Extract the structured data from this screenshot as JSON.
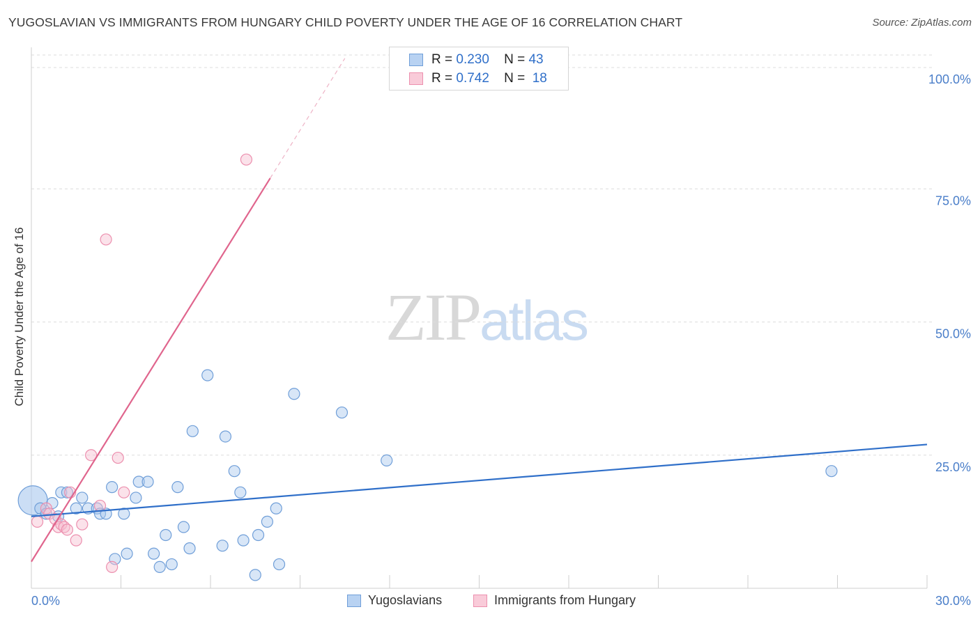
{
  "title": "YUGOSLAVIAN VS IMMIGRANTS FROM HUNGARY CHILD POVERTY UNDER THE AGE OF 16 CORRELATION CHART",
  "source": "Source: ZipAtlas.com",
  "watermark": {
    "zip": "ZIP",
    "atlas": "atlas"
  },
  "legend_top": [
    {
      "r_label": "R =",
      "r_value": "0.230",
      "n_label": "N =",
      "n_value": "43"
    },
    {
      "r_label": "R =",
      "r_value": "0.742",
      "n_label": "N =",
      "n_value": "18"
    }
  ],
  "chart_data": {
    "type": "scatter",
    "title": "YUGOSLAVIAN VS IMMIGRANTS FROM HUNGARY CHILD POVERTY UNDER THE AGE OF 16 CORRELATION CHART",
    "xlabel": "",
    "ylabel": "Child Poverty Under the Age of 16",
    "xlim": [
      0,
      30
    ],
    "ylim": [
      0,
      100
    ],
    "x_tick_labels": [
      "0.0%",
      "30.0%"
    ],
    "y_tick_labels": [
      "25.0%",
      "50.0%",
      "75.0%",
      "100.0%"
    ],
    "y_ticks": [
      25,
      50,
      75,
      100
    ],
    "grid": true,
    "legend_placement": "bottom",
    "series": [
      {
        "name": "Yugoslavians",
        "color": "#a9c8ee",
        "stroke": "#6f9ed8",
        "trend_color": "#2f6fc9",
        "trend": {
          "x0": 0,
          "y0": 13.5,
          "x1": 30,
          "y1": 27.0
        },
        "points": [
          {
            "x": 0.05,
            "y": 16.5,
            "big": true
          },
          {
            "x": 0.3,
            "y": 15.0
          },
          {
            "x": 0.5,
            "y": 14.0
          },
          {
            "x": 0.7,
            "y": 16.0
          },
          {
            "x": 0.9,
            "y": 13.5
          },
          {
            "x": 1.0,
            "y": 18.0
          },
          {
            "x": 1.2,
            "y": 18.0
          },
          {
            "x": 1.5,
            "y": 15.0
          },
          {
            "x": 1.7,
            "y": 17.0
          },
          {
            "x": 1.9,
            "y": 15.0
          },
          {
            "x": 2.2,
            "y": 15.0
          },
          {
            "x": 2.3,
            "y": 14.0
          },
          {
            "x": 2.5,
            "y": 14.0
          },
          {
            "x": 2.7,
            "y": 19.0
          },
          {
            "x": 2.8,
            "y": 5.5
          },
          {
            "x": 3.1,
            "y": 14.0
          },
          {
            "x": 3.2,
            "y": 6.5
          },
          {
            "x": 3.5,
            "y": 17.0
          },
          {
            "x": 3.6,
            "y": 20.0
          },
          {
            "x": 3.9,
            "y": 20.0
          },
          {
            "x": 4.1,
            "y": 6.5
          },
          {
            "x": 4.3,
            "y": 4.0
          },
          {
            "x": 4.5,
            "y": 10.0
          },
          {
            "x": 4.7,
            "y": 4.5
          },
          {
            "x": 4.9,
            "y": 19.0
          },
          {
            "x": 5.1,
            "y": 11.5
          },
          {
            "x": 5.3,
            "y": 7.5
          },
          {
            "x": 5.4,
            "y": 29.5
          },
          {
            "x": 5.9,
            "y": 40.0
          },
          {
            "x": 6.4,
            "y": 8.0
          },
          {
            "x": 6.5,
            "y": 28.5
          },
          {
            "x": 6.8,
            "y": 22.0
          },
          {
            "x": 7.0,
            "y": 18.0
          },
          {
            "x": 7.1,
            "y": 9.0
          },
          {
            "x": 7.5,
            "y": 2.5
          },
          {
            "x": 7.6,
            "y": 10.0
          },
          {
            "x": 7.9,
            "y": 12.5
          },
          {
            "x": 8.2,
            "y": 15.0
          },
          {
            "x": 8.3,
            "y": 4.5
          },
          {
            "x": 8.8,
            "y": 36.5
          },
          {
            "x": 10.4,
            "y": 33.0
          },
          {
            "x": 11.9,
            "y": 24.0
          },
          {
            "x": 26.8,
            "y": 22.0
          }
        ]
      },
      {
        "name": "Immigrants from Hungary",
        "color": "#f6bfd0",
        "stroke": "#ec8fae",
        "trend_color": "#e0658d",
        "trend": {
          "x0": 0,
          "y0": 5.0,
          "x1": 8.0,
          "y1": 77.0
        },
        "trend_dashed": {
          "x0": 8.0,
          "y0": 77.0,
          "x1": 10.5,
          "y1": 99.5
        },
        "points": [
          {
            "x": 0.2,
            "y": 12.5
          },
          {
            "x": 0.5,
            "y": 15.0
          },
          {
            "x": 0.6,
            "y": 14.0
          },
          {
            "x": 0.8,
            "y": 13.0
          },
          {
            "x": 0.9,
            "y": 11.5
          },
          {
            "x": 1.0,
            "y": 12.0
          },
          {
            "x": 1.1,
            "y": 11.5
          },
          {
            "x": 1.2,
            "y": 11.0
          },
          {
            "x": 1.3,
            "y": 18.0
          },
          {
            "x": 1.5,
            "y": 9.0
          },
          {
            "x": 1.7,
            "y": 12.0
          },
          {
            "x": 2.0,
            "y": 25.0
          },
          {
            "x": 2.3,
            "y": 15.5
          },
          {
            "x": 2.5,
            "y": 65.5
          },
          {
            "x": 2.7,
            "y": 4.0
          },
          {
            "x": 2.9,
            "y": 24.5
          },
          {
            "x": 3.1,
            "y": 18.0
          },
          {
            "x": 7.2,
            "y": 80.5
          }
        ]
      }
    ]
  }
}
